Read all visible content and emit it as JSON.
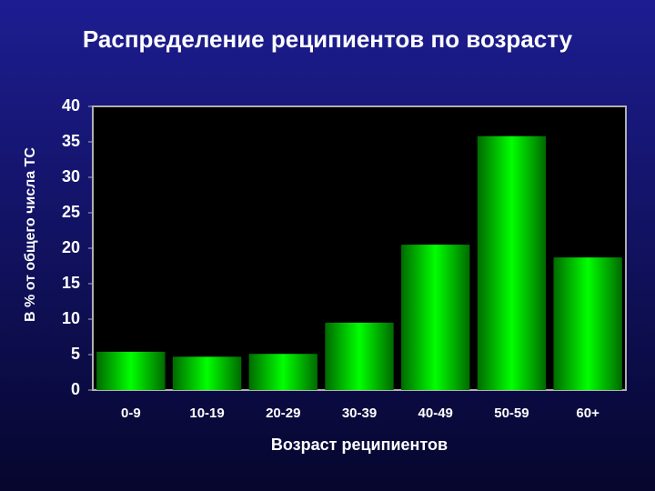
{
  "chart_data": {
    "type": "bar",
    "title": "Распределение реципиентов по возрасту",
    "x_label": "Возраст реципиентов",
    "y_label": "В % от общего числа ТС",
    "categories": [
      "0-9",
      "10-19",
      "20-29",
      "30-39",
      "40-49",
      "50-59",
      "60+"
    ],
    "values": [
      5.4,
      4.7,
      5.1,
      9.5,
      20.5,
      35.8,
      18.7
    ],
    "color": "#00ff00",
    "ylim": [
      0,
      40
    ],
    "yticks": [
      0,
      5,
      10,
      15,
      20,
      25,
      30,
      35,
      40
    ],
    "grid": false
  }
}
